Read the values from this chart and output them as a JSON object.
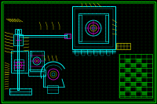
{
  "bg_color": "#000000",
  "border_outer": "#00bb00",
  "border_inner": "#00bb00",
  "dot_color": "#004400",
  "figsize": [
    2.0,
    1.33
  ],
  "dpi": 100,
  "lc": {
    "g": "#00ff00",
    "c": "#00ffff",
    "y": "#cccc00",
    "m": "#ff00ff",
    "t": "#009999",
    "lg": "#00cc00",
    "w": "#ffffff",
    "r": "#ff0000",
    "dg": "#007700"
  }
}
